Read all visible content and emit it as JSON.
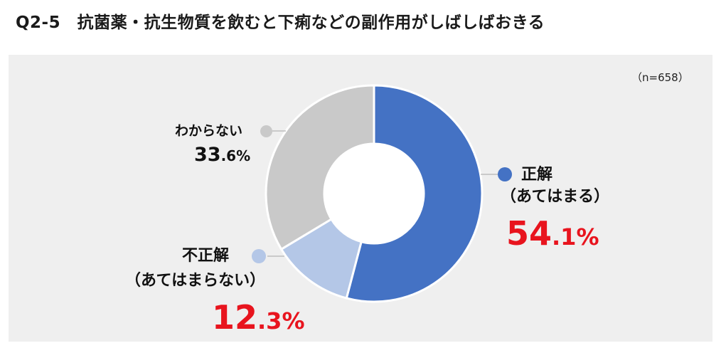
{
  "title": "Q2-5　抗菌薬・抗生物質を飲むと下痢などの副作用がしばしばおきる",
  "sample_note": "（n=658）",
  "chart_data": {
    "type": "pie",
    "title": "Q2-5　抗菌薬・抗生物質を飲むと下痢などの副作用がしばしばおきる",
    "donut": true,
    "categories": [
      "正解（あてはまる）",
      "不正解（あてはまらない）",
      "わからない"
    ],
    "values": [
      54.1,
      12.3,
      33.6
    ],
    "colors": [
      "#4472c4",
      "#b4c7e7",
      "#c9c9c9"
    ],
    "legend": "labels-beside-slices"
  },
  "labels": {
    "correct": {
      "name_line1": "正解",
      "name_line2": "（あてはまる）",
      "pct_int": "54",
      "pct_dec": ".1%"
    },
    "incorrect": {
      "name_line1": "不正解",
      "name_line2": "（あてはまらない）",
      "pct_int": "12",
      "pct_dec": ".3%"
    },
    "unknown": {
      "name_line1": "わからない",
      "pct_int": "33",
      "pct_dec": ".6%"
    }
  }
}
